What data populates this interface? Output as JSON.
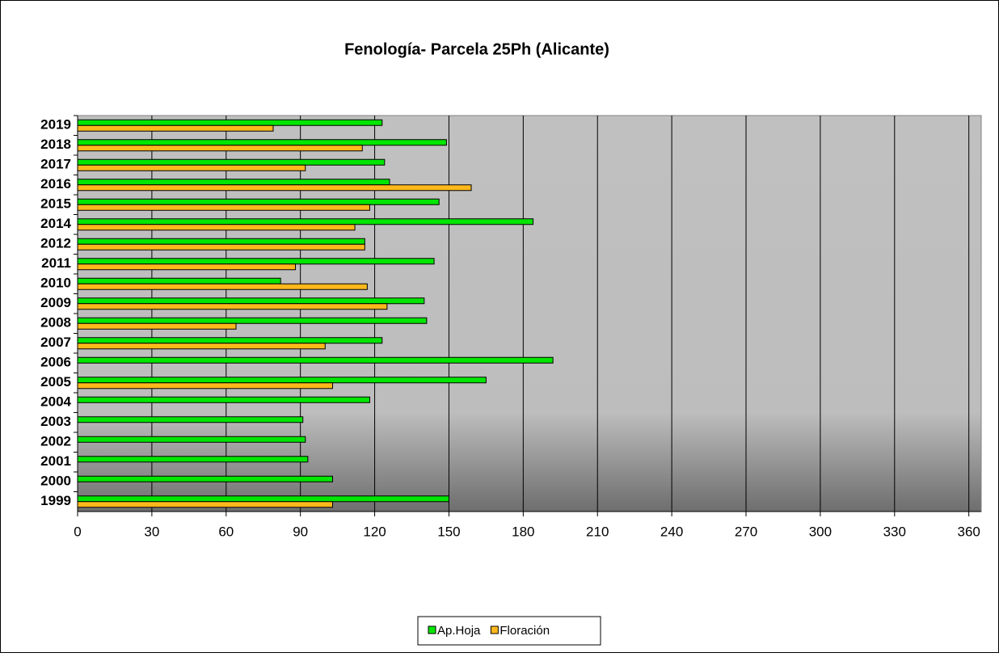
{
  "chart_data": {
    "type": "bar",
    "orientation": "horizontal",
    "title": "Fenología- Parcela 25Ph (Alicante)",
    "categories": [
      "2019",
      "2018",
      "2017",
      "2016",
      "2015",
      "2014",
      "2012",
      "2011",
      "2010",
      "2009",
      "2008",
      "2007",
      "2006",
      "2005",
      "2004",
      "2003",
      "2002",
      "2001",
      "2000",
      "1999"
    ],
    "series": [
      {
        "name": "Ap.Hoja",
        "color": "#00e600",
        "values": [
          123,
          149,
          124,
          126,
          146,
          184,
          116,
          144,
          82,
          140,
          141,
          123,
          192,
          165,
          118,
          91,
          92,
          93,
          103,
          150
        ]
      },
      {
        "name": "Floración",
        "color": "#ffb81c",
        "values": [
          79,
          115,
          92,
          159,
          118,
          112,
          116,
          88,
          117,
          125,
          64,
          100,
          null,
          103,
          null,
          null,
          null,
          null,
          null,
          103
        ]
      }
    ],
    "xlim": [
      0,
      365
    ],
    "xticks": [
      0,
      30,
      60,
      90,
      120,
      150,
      180,
      210,
      240,
      270,
      300,
      330,
      360
    ],
    "grid": true,
    "legend": "bottom"
  }
}
